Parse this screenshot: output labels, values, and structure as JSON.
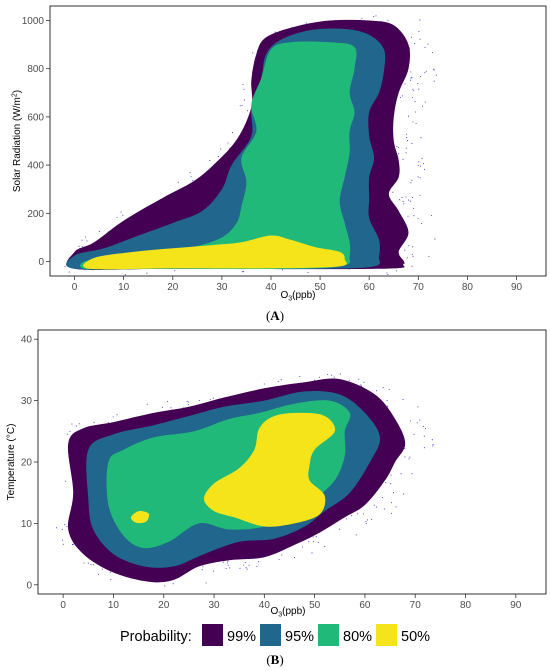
{
  "legend": {
    "title": "Probability:",
    "items": [
      {
        "label": "99%",
        "color": "#440154"
      },
      {
        "label": "95%",
        "color": "#21668c"
      },
      {
        "label": "80%",
        "color": "#21b97a"
      },
      {
        "label": "50%",
        "color": "#f5e41a"
      }
    ]
  },
  "point_color": "#3b3bd6",
  "chart_data": [
    {
      "panel": "(A)",
      "panel_label_parts": [
        "(",
        "A",
        ")"
      ],
      "type": "density-contour",
      "xlabel_main": "O",
      "xlabel_sub": "3",
      "xlabel_suffix": "(ppb)",
      "ylabel_main": "Solar Radiation (W/m",
      "ylabel_sup": "2",
      "ylabel_suffix": ")",
      "xlim": [
        -5,
        96
      ],
      "ylim": [
        -60,
        1060
      ],
      "xticks": [
        0,
        10,
        20,
        30,
        40,
        50,
        60,
        70,
        80,
        90
      ],
      "yticks": [
        0,
        200,
        400,
        600,
        800,
        1000
      ],
      "grid": false,
      "contours": [
        {
          "level": "99%",
          "points": [
            [
              0,
              -30
            ],
            [
              0,
              40
            ],
            [
              4,
              80
            ],
            [
              10,
              170
            ],
            [
              18,
              265
            ],
            [
              24,
              330
            ],
            [
              28,
              395
            ],
            [
              33,
              505
            ],
            [
              36,
              640
            ],
            [
              36,
              750
            ],
            [
              37,
              860
            ],
            [
              39,
              930
            ],
            [
              45,
              975
            ],
            [
              52,
              1000
            ],
            [
              60,
              1000
            ],
            [
              65,
              980
            ],
            [
              68,
              900
            ],
            [
              68,
              800
            ],
            [
              66,
              700
            ],
            [
              65,
              600
            ],
            [
              65,
              500
            ],
            [
              66,
              420
            ],
            [
              66,
              350
            ],
            [
              64,
              280
            ],
            [
              66,
              210
            ],
            [
              68,
              120
            ],
            [
              66,
              40
            ],
            [
              67,
              -10
            ],
            [
              62,
              -30
            ],
            [
              20,
              -30
            ]
          ]
        },
        {
          "level": "95%",
          "points": [
            [
              0,
              -30
            ],
            [
              0,
              25
            ],
            [
              6,
              55
            ],
            [
              12,
              100
            ],
            [
              20,
              160
            ],
            [
              26,
              210
            ],
            [
              30,
              300
            ],
            [
              32,
              400
            ],
            [
              36,
              520
            ],
            [
              36,
              640
            ],
            [
              38,
              760
            ],
            [
              39,
              860
            ],
            [
              42,
              920
            ],
            [
              48,
              960
            ],
            [
              55,
              965
            ],
            [
              60,
              940
            ],
            [
              63,
              880
            ],
            [
              63,
              790
            ],
            [
              62,
              700
            ],
            [
              60,
              620
            ],
            [
              60,
              520
            ],
            [
              61,
              430
            ],
            [
              60,
              350
            ],
            [
              60,
              260
            ],
            [
              60,
              180
            ],
            [
              62,
              90
            ],
            [
              62,
              20
            ],
            [
              61,
              -20
            ],
            [
              50,
              -30
            ],
            [
              20,
              -30
            ]
          ]
        },
        {
          "level": "80%",
          "points": [
            [
              2,
              -30
            ],
            [
              2,
              0
            ],
            [
              8,
              20
            ],
            [
              16,
              40
            ],
            [
              24,
              60
            ],
            [
              30,
              100
            ],
            [
              33,
              160
            ],
            [
              34,
              230
            ],
            [
              35,
              330
            ],
            [
              34,
              430
            ],
            [
              37,
              540
            ],
            [
              36,
              650
            ],
            [
              38,
              760
            ],
            [
              40,
              880
            ],
            [
              44,
              910
            ],
            [
              52,
              910
            ],
            [
              57,
              890
            ],
            [
              57,
              800
            ],
            [
              56,
              700
            ],
            [
              57,
              620
            ],
            [
              56,
              540
            ],
            [
              56,
              450
            ],
            [
              55,
              350
            ],
            [
              54,
              250
            ],
            [
              55,
              160
            ],
            [
              56,
              80
            ],
            [
              56,
              20
            ],
            [
              55,
              -15
            ],
            [
              45,
              -30
            ],
            [
              10,
              -30
            ]
          ]
        },
        {
          "level": "50%",
          "points": [
            [
              3,
              -30
            ],
            [
              4,
              15
            ],
            [
              12,
              40
            ],
            [
              20,
              55
            ],
            [
              28,
              68
            ],
            [
              34,
              80
            ],
            [
              40,
              108
            ],
            [
              44,
              90
            ],
            [
              49,
              60
            ],
            [
              54,
              40
            ],
            [
              55,
              10
            ],
            [
              54,
              -20
            ],
            [
              40,
              -28
            ],
            [
              20,
              -28
            ]
          ]
        }
      ],
      "points_note": "scattered observations drawn as small dots"
    },
    {
      "panel": "(B)",
      "panel_label_parts": [
        "(",
        "B",
        ")"
      ],
      "type": "density-contour",
      "xlabel_main": "O",
      "xlabel_sub": "3",
      "xlabel_suffix": "(ppb)",
      "ylabel_main": "Temperature (°C)",
      "ylabel_sup": "",
      "ylabel_suffix": "",
      "xlim": [
        -5,
        96
      ],
      "ylim": [
        -1.5,
        41.5
      ],
      "xticks": [
        0,
        10,
        20,
        30,
        40,
        50,
        60,
        70,
        80,
        90
      ],
      "yticks": [
        0,
        10,
        20,
        30,
        40
      ],
      "grid": false,
      "contours": [
        {
          "level": "99%",
          "points": [
            [
              1,
              23
            ],
            [
              2,
              15
            ],
            [
              1,
              9
            ],
            [
              4,
              5
            ],
            [
              10,
              2
            ],
            [
              17,
              0.5
            ],
            [
              22,
              0.8
            ],
            [
              27,
              3
            ],
            [
              33,
              4
            ],
            [
              40,
              4.5
            ],
            [
              46,
              6.5
            ],
            [
              51,
              8.5
            ],
            [
              56,
              11
            ],
            [
              60,
              13
            ],
            [
              64,
              17
            ],
            [
              66,
              20
            ],
            [
              68,
              23
            ],
            [
              66,
              27
            ],
            [
              62,
              31
            ],
            [
              55,
              33.5
            ],
            [
              48,
              33
            ],
            [
              40,
              32
            ],
            [
              32,
              30.5
            ],
            [
              25,
              29
            ],
            [
              18,
              28
            ],
            [
              10,
              26.5
            ],
            [
              4,
              25.5
            ]
          ]
        },
        {
          "level": "95%",
          "points": [
            [
              5,
              22
            ],
            [
              5,
              14
            ],
            [
              6,
              9
            ],
            [
              10,
              5
            ],
            [
              16,
              3
            ],
            [
              22,
              3
            ],
            [
              28,
              5
            ],
            [
              35,
              7
            ],
            [
              42,
              7.5
            ],
            [
              48,
              9.5
            ],
            [
              52,
              12
            ],
            [
              57,
              15
            ],
            [
              61,
              20
            ],
            [
              63,
              24
            ],
            [
              60,
              28
            ],
            [
              55,
              31
            ],
            [
              48,
              31.5
            ],
            [
              40,
              30
            ],
            [
              32,
              29
            ],
            [
              25,
              27.5
            ],
            [
              18,
              26
            ],
            [
              10,
              24.5
            ]
          ]
        },
        {
          "level": "80%",
          "points": [
            [
              9,
              20
            ],
            [
              9,
              13
            ],
            [
              12,
              8
            ],
            [
              16,
              6
            ],
            [
              21,
              7
            ],
            [
              27,
              10
            ],
            [
              33,
              9
            ],
            [
              40,
              9.5
            ],
            [
              46,
              12
            ],
            [
              50,
              14
            ],
            [
              54,
              17
            ],
            [
              56,
              21
            ],
            [
              56,
              25
            ],
            [
              57,
              28
            ],
            [
              53,
              30
            ],
            [
              46,
              29.5
            ],
            [
              39,
              28
            ],
            [
              33,
              27
            ],
            [
              26,
              25
            ],
            [
              18,
              24
            ],
            [
              12,
              22
            ]
          ]
        },
        {
          "level": "50%",
          "points": [
            [
              28,
              14
            ],
            [
              30,
              16.5
            ],
            [
              35,
              19
            ],
            [
              38,
              22
            ],
            [
              39,
              25.5
            ],
            [
              42,
              27.5
            ],
            [
              47,
              28
            ],
            [
              52,
              27.5
            ],
            [
              54,
              25
            ],
            [
              50,
              22
            ],
            [
              49,
              19.5
            ],
            [
              49,
              17
            ],
            [
              52,
              14.5
            ],
            [
              51,
              11.5
            ],
            [
              46,
              10
            ],
            [
              40,
              9.5
            ],
            [
              34,
              11
            ],
            [
              30,
              12
            ]
          ]
        },
        {
          "level": "50%",
          "points": [
            [
              13.5,
              11
            ],
            [
              15,
              12
            ],
            [
              17,
              11.6
            ],
            [
              16.5,
              10.3
            ],
            [
              14.5,
              10.1
            ]
          ]
        }
      ],
      "points_note": "scattered observations drawn as small dots"
    }
  ]
}
